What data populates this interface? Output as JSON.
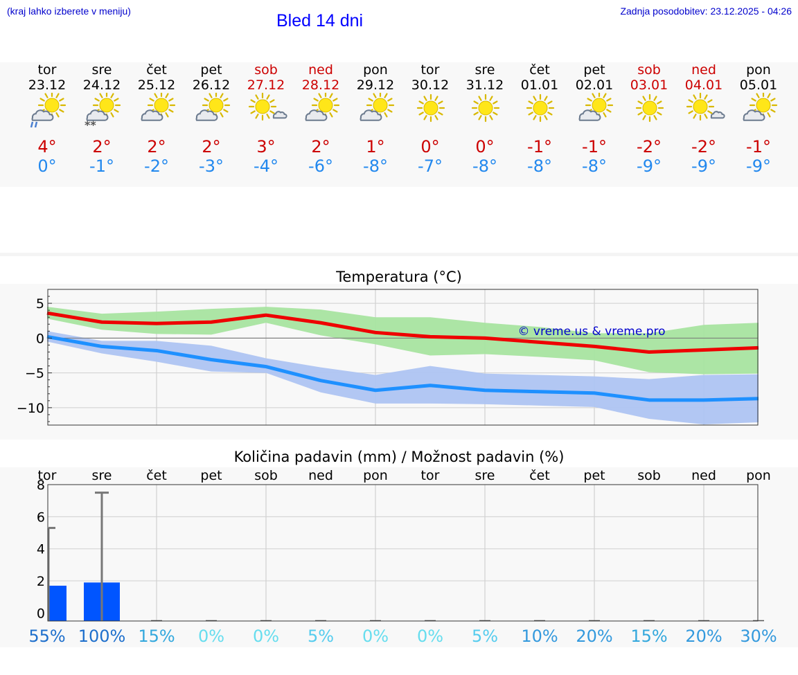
{
  "header": {
    "region_note": "(kraj lahko izberete v meniju)",
    "title": "Bled 14 dni",
    "updated": "Zadnja posodobitev: 23.12.2025 - 04:26"
  },
  "colors": {
    "weekend": "#cc0000",
    "max_temp": "#cc0000",
    "min_temp": "#2288ee",
    "max_band": "#a8e4a0",
    "min_band": "#aec4f2",
    "max_line": "#ee0000",
    "min_line": "#1e90ff",
    "precip_bar": "#0055ff",
    "watermark": "#0000cc"
  },
  "days": [
    {
      "name": "tor",
      "date": "23.12",
      "weekend": false,
      "icon": "partly-cloudy-rain-icon",
      "max": "4°",
      "min": "0°"
    },
    {
      "name": "sre",
      "date": "24.12",
      "weekend": false,
      "icon": "partly-cloudy-snow-icon",
      "max": "2°",
      "min": "-1°"
    },
    {
      "name": "čet",
      "date": "25.12",
      "weekend": false,
      "icon": "partly-cloudy-icon",
      "max": "2°",
      "min": "-2°"
    },
    {
      "name": "pet",
      "date": "26.12",
      "weekend": false,
      "icon": "partly-cloudy-icon",
      "max": "2°",
      "min": "-3°"
    },
    {
      "name": "sob",
      "date": "27.12",
      "weekend": true,
      "icon": "mostly-sunny-icon",
      "max": "3°",
      "min": "-4°"
    },
    {
      "name": "ned",
      "date": "28.12",
      "weekend": true,
      "icon": "partly-cloudy-icon",
      "max": "2°",
      "min": "-6°"
    },
    {
      "name": "pon",
      "date": "29.12",
      "weekend": false,
      "icon": "partly-cloudy-icon",
      "max": "1°",
      "min": "-8°"
    },
    {
      "name": "tor",
      "date": "30.12",
      "weekend": false,
      "icon": "sunny-icon",
      "max": "0°",
      "min": "-7°"
    },
    {
      "name": "sre",
      "date": "31.12",
      "weekend": false,
      "icon": "sunny-icon",
      "max": "0°",
      "min": "-8°"
    },
    {
      "name": "čet",
      "date": "01.01",
      "weekend": false,
      "icon": "sunny-icon",
      "max": "-1°",
      "min": "-8°"
    },
    {
      "name": "pet",
      "date": "02.01",
      "weekend": false,
      "icon": "partly-cloudy-icon",
      "max": "-1°",
      "min": "-8°"
    },
    {
      "name": "sob",
      "date": "03.01",
      "weekend": true,
      "icon": "sunny-icon",
      "max": "-2°",
      "min": "-9°"
    },
    {
      "name": "ned",
      "date": "04.01",
      "weekend": true,
      "icon": "mostly-sunny-icon",
      "max": "-2°",
      "min": "-9°"
    },
    {
      "name": "pon",
      "date": "05.01",
      "weekend": false,
      "icon": "partly-cloudy-icon",
      "max": "-1°",
      "min": "-9°"
    }
  ],
  "chart_data": [
    {
      "type": "line",
      "title": "Temperatura (°C)",
      "ylabel": "°C",
      "ylim": [
        -12.5,
        7
      ],
      "yticks": [
        5,
        0,
        -5,
        -10
      ],
      "ytick_labels": [
        "5",
        "0",
        "−5",
        "−10"
      ],
      "x": [
        0,
        1,
        2,
        3,
        4,
        5,
        6,
        7,
        8,
        9,
        10,
        11,
        12,
        13
      ],
      "watermark": "© vreme.us & vreme.pro",
      "series": [
        {
          "name": "max",
          "values": [
            3.6,
            2.3,
            2.1,
            2.3,
            3.3,
            2.2,
            0.8,
            0.2,
            0.0,
            -0.6,
            -1.2,
            -2.0,
            -1.7,
            -1.4
          ]
        },
        {
          "name": "min",
          "values": [
            0.2,
            -1.2,
            -1.8,
            -3.1,
            -4.1,
            -6.1,
            -7.5,
            -6.8,
            -7.5,
            -7.7,
            -7.9,
            -8.9,
            -8.9,
            -8.7
          ]
        }
      ],
      "bands": [
        {
          "name": "max_range",
          "upper": [
            4.5,
            3.5,
            3.8,
            4.2,
            4.5,
            4.1,
            3.0,
            3.0,
            2.2,
            1.6,
            0.7,
            0.7,
            1.9,
            2.2
          ],
          "lower": [
            2.8,
            1.2,
            0.6,
            0.5,
            2.2,
            0.4,
            -0.9,
            -2.5,
            -2.3,
            -2.7,
            -3.2,
            -4.9,
            -5.2,
            -5.1
          ]
        },
        {
          "name": "min_range",
          "upper": [
            1.0,
            -0.4,
            -0.4,
            -1.1,
            -2.9,
            -4.2,
            -5.3,
            -4.0,
            -5.1,
            -5.3,
            -5.5,
            -5.9,
            -5.3,
            -5.2
          ],
          "lower": [
            -0.5,
            -2.2,
            -3.4,
            -4.8,
            -5.0,
            -7.8,
            -9.4,
            -9.4,
            -9.5,
            -9.7,
            -9.9,
            -11.6,
            -12.4,
            -12.1
          ]
        }
      ]
    },
    {
      "type": "bar",
      "title": "Količina padavin (mm) / Možnost padavin (%)",
      "ylabel": "mm",
      "ylim": [
        -0.5,
        8
      ],
      "yticks": [
        8,
        6,
        4,
        2,
        0
      ],
      "categories": [
        "tor",
        "sre",
        "čet",
        "pet",
        "sob",
        "ned",
        "pon",
        "tor",
        "sre",
        "čet",
        "pet",
        "sob",
        "ned",
        "pon"
      ],
      "values": [
        1.7,
        1.9,
        0,
        0,
        0,
        0,
        0,
        0,
        0,
        0,
        0,
        0,
        0,
        0
      ],
      "error_high": [
        5.3,
        7.5,
        0,
        0,
        0,
        0,
        0,
        0,
        0,
        0,
        0,
        0,
        0,
        0
      ],
      "probability": [
        "55%",
        "100%",
        "15%",
        "0%",
        "0%",
        "5%",
        "0%",
        "0%",
        "5%",
        "10%",
        "20%",
        "15%",
        "20%",
        "30%"
      ],
      "probability_colors": [
        "#1e6fcc",
        "#1e6fcc",
        "#33a8dd",
        "#66ddee",
        "#66ddee",
        "#55ccee",
        "#66ddee",
        "#66ddee",
        "#55ccee",
        "#3399dd",
        "#3399dd",
        "#33a8dd",
        "#3399dd",
        "#3399dd"
      ]
    }
  ]
}
